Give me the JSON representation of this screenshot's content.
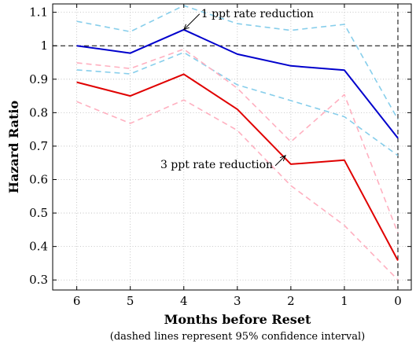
{
  "chart_data": {
    "type": "line",
    "xlabel": "Months before Reset",
    "ylabel": "Hazard Ratio",
    "note": "(dashed lines represent 95% confidence interval)",
    "x": [
      6,
      5,
      4,
      3,
      2,
      1,
      0
    ],
    "x_tick_labels": [
      "6",
      "5",
      "4",
      "3",
      "2",
      "1",
      "0"
    ],
    "y_ticks": [
      0.3,
      0.4,
      0.5,
      0.6,
      0.7,
      0.8,
      0.9,
      1,
      1.1
    ],
    "y_tick_labels": [
      "0.3",
      "0.4",
      "0.5",
      "0.6",
      "0.7",
      "0.8",
      "0.9",
      "1",
      "1.1"
    ],
    "xlim": [
      6.45,
      -0.25
    ],
    "ylim": [
      0.27,
      1.125
    ],
    "grid": true,
    "reference_lines": {
      "horizontal_y": 1,
      "vertical_x": 0
    },
    "series": [
      {
        "key": "blue",
        "values": [
          1.0,
          0.978,
          1.048,
          0.975,
          0.94,
          0.927,
          0.724
        ],
        "color": "#0000cc",
        "style": "solid"
      },
      {
        "key": "blue_upper",
        "values": [
          1.073,
          1.042,
          1.12,
          1.066,
          1.046,
          1.064,
          0.78
        ],
        "color": "#87ceeb",
        "style": "dashed"
      },
      {
        "key": "blue_lower",
        "values": [
          0.928,
          0.916,
          0.98,
          0.883,
          0.836,
          0.788,
          0.672
        ],
        "color": "#87ceeb",
        "style": "dashed"
      },
      {
        "key": "red",
        "values": [
          0.891,
          0.85,
          0.915,
          0.81,
          0.646,
          0.658,
          0.358
        ],
        "color": "#e00000",
        "style": "solid"
      },
      {
        "key": "red_upper",
        "values": [
          0.949,
          0.932,
          0.99,
          0.873,
          0.713,
          0.854,
          0.44
        ],
        "color": "#ffb0c0",
        "style": "dashed"
      },
      {
        "key": "red_lower",
        "values": [
          0.833,
          0.768,
          0.838,
          0.747,
          0.582,
          0.463,
          0.3
        ],
        "color": "#ffb0c0",
        "style": "dashed"
      }
    ],
    "annotations": [
      {
        "text": "1 ppt rate reduction",
        "arrow_to": [
          4.0,
          1.048
        ],
        "anchor": "start"
      },
      {
        "text": "3 ppt rate reduction",
        "arrow_to": [
          2.1,
          0.672
        ],
        "anchor": "end"
      }
    ]
  }
}
